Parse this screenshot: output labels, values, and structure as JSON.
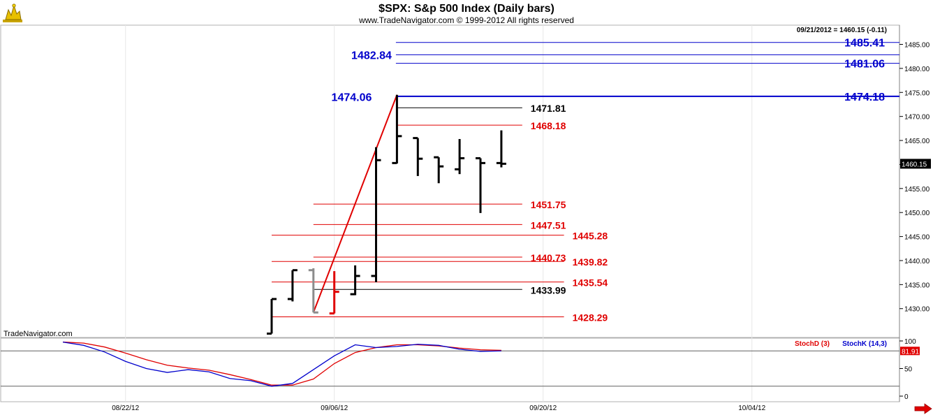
{
  "header": {
    "title": "$SPX:  S&p 500 Index  (Daily bars)",
    "copyright": "www.TradeNavigator.com © 1999-2012 All rights reserved",
    "last_quote": "09/21/2012 = 1460.15 (-0.11)",
    "watermark": "TradeNavigator.com"
  },
  "colors": {
    "bar": "#000000",
    "grey_bar": "#8c8c8c",
    "red": "#e00000",
    "blue": "#0000cc",
    "stoch_d": "#e00000",
    "stoch_k": "#2020c0",
    "grid": "#e8e8e8"
  },
  "icons": [
    "logo-icon",
    "scroll-right-arrow-icon"
  ],
  "chart_data": [
    {
      "type": "ohlc",
      "title": "$SPX:  S&p 500 Index  (Daily bars)",
      "ylim": [
        1424,
        1489
      ],
      "yticks": [
        "1430.00",
        "1435.00",
        "1440.00",
        "1445.00",
        "1450.00",
        "1455.00",
        "1460.00",
        "1465.00",
        "1470.00",
        "1475.00",
        "1480.00",
        "1485.00"
      ],
      "x_ticks": [
        {
          "label": "08/22/12",
          "i": -7
        },
        {
          "label": "09/06/12",
          "i": 3
        },
        {
          "label": "09/20/12",
          "i": 13
        },
        {
          "label": "10/04/12",
          "i": 23
        }
      ],
      "last_price_label": "1460.15",
      "bars": [
        {
          "i": 0,
          "o": 1424.8,
          "h": 1432.0,
          "l": 1424.8,
          "c": 1432.0,
          "color": "black"
        },
        {
          "i": 1,
          "o": 1432.0,
          "h": 1438.0,
          "l": 1431.5,
          "c": 1438.0,
          "color": "black"
        },
        {
          "i": 2,
          "o": 1438.0,
          "h": 1438.4,
          "l": 1429.2,
          "c": 1429.2,
          "color": "grey"
        },
        {
          "i": 3,
          "o": 1429.0,
          "h": 1437.8,
          "l": 1429.0,
          "c": 1433.5,
          "color": "red"
        },
        {
          "i": 4,
          "o": 1433.0,
          "h": 1439.0,
          "l": 1432.8,
          "c": 1436.8,
          "color": "black"
        },
        {
          "i": 5,
          "o": 1436.8,
          "h": 1463.6,
          "l": 1435.5,
          "c": 1460.9,
          "color": "black"
        },
        {
          "i": 6,
          "o": 1460.3,
          "h": 1474.5,
          "l": 1460.2,
          "c": 1465.9,
          "color": "black"
        },
        {
          "i": 7,
          "o": 1465.5,
          "h": 1465.5,
          "l": 1457.6,
          "c": 1461.2,
          "color": "black"
        },
        {
          "i": 8,
          "o": 1461.5,
          "h": 1461.5,
          "l": 1456.1,
          "c": 1459.6,
          "color": "black"
        },
        {
          "i": 9,
          "o": 1459.0,
          "h": 1465.3,
          "l": 1458.0,
          "c": 1461.3,
          "color": "black"
        },
        {
          "i": 10,
          "o": 1461.3,
          "h": 1461.3,
          "l": 1449.9,
          "c": 1460.3,
          "color": "black"
        },
        {
          "i": 11,
          "o": 1460.3,
          "h": 1467.1,
          "l": 1459.4,
          "c": 1460.15,
          "color": "black"
        }
      ],
      "trend_line": {
        "from": {
          "i": 2,
          "y": 1429.2
        },
        "to": {
          "i": 6,
          "y": 1474.5
        },
        "color": "red"
      },
      "levels": [
        {
          "value": 1485.41,
          "label": "1485.41",
          "color": "blue",
          "from_i": 5.95,
          "to": "axis",
          "label_pos": "right-edge"
        },
        {
          "value": 1482.84,
          "label": "1482.84",
          "color": "blue",
          "from_i": 5.95,
          "to": "axis",
          "label_pos": "left"
        },
        {
          "value": 1481.06,
          "label": "1481.06",
          "color": "blue",
          "from_i": 5.95,
          "to": "axis",
          "label_pos": "right-edge"
        },
        {
          "value": 1474.18,
          "label": "1474.18",
          "color": "blue",
          "from_i": 5.95,
          "to": "axis",
          "label_pos": "right-edge",
          "thick": true
        },
        {
          "value": 1474.06,
          "label": "1474.06",
          "color": "blue",
          "label_only": true,
          "label_pos": "left-anchor"
        },
        {
          "value": 1471.81,
          "label": "1471.81",
          "color": "black",
          "from_i": 6.0,
          "to_i": 12.0
        },
        {
          "value": 1468.18,
          "label": "1468.18",
          "color": "red",
          "from_i": 6.0,
          "to_i": 12.0
        },
        {
          "value": 1451.75,
          "label": "1451.75",
          "color": "red",
          "from_i": 2.0,
          "to_i": 12.0
        },
        {
          "value": 1447.51,
          "label": "1447.51",
          "color": "red",
          "from_i": 2.0,
          "to_i": 12.0
        },
        {
          "value": 1445.28,
          "label": "1445.28",
          "color": "red",
          "from_i": 0.0,
          "to_i": 14.0
        },
        {
          "value": 1440.73,
          "label": "1440.73",
          "color": "red",
          "from_i": 2.0,
          "to_i": 12.0
        },
        {
          "value": 1439.82,
          "label": "1439.82",
          "color": "red",
          "from_i": 0.0,
          "to_i": 14.0
        },
        {
          "value": 1435.54,
          "label": "1435.54",
          "color": "red",
          "from_i": 0.0,
          "to_i": 14.0
        },
        {
          "value": 1433.99,
          "label": "1433.99",
          "color": "black",
          "from_i": 2.0,
          "to_i": 12.0
        },
        {
          "value": 1428.29,
          "label": "1428.29",
          "color": "red",
          "from_i": 0.0,
          "to_i": 14.0
        }
      ]
    },
    {
      "type": "line",
      "title": "",
      "ylim": [
        0,
        100
      ],
      "yticks": [
        "100",
        "50",
        "0"
      ],
      "reference_lines": [
        82,
        18
      ],
      "last_value_label": "81.91",
      "series": [
        {
          "name": "StochD (3)",
          "color": "red",
          "x": [
            -10,
            -9,
            -8,
            -7,
            -6,
            -5,
            -4,
            -3,
            -2,
            -1,
            0,
            1,
            2,
            3,
            4,
            5,
            6,
            7,
            8,
            9,
            10,
            11
          ],
          "values": [
            98,
            96,
            89,
            78,
            66,
            56,
            51,
            47,
            39,
            30,
            20,
            20,
            31,
            59,
            79,
            88,
            93,
            93,
            91,
            87,
            84,
            83
          ]
        },
        {
          "name": "StochK (14,3)",
          "color": "blue",
          "x": [
            -10,
            -9,
            -8,
            -7,
            -6,
            -5,
            -4,
            -3,
            -2,
            -1,
            0,
            1,
            2,
            3,
            4,
            5,
            6,
            7,
            8,
            9,
            10,
            11
          ],
          "values": [
            98,
            92,
            80,
            63,
            50,
            43,
            48,
            44,
            32,
            28,
            18,
            23,
            48,
            73,
            93,
            88,
            90,
            94,
            92,
            85,
            81,
            82
          ]
        }
      ]
    }
  ]
}
